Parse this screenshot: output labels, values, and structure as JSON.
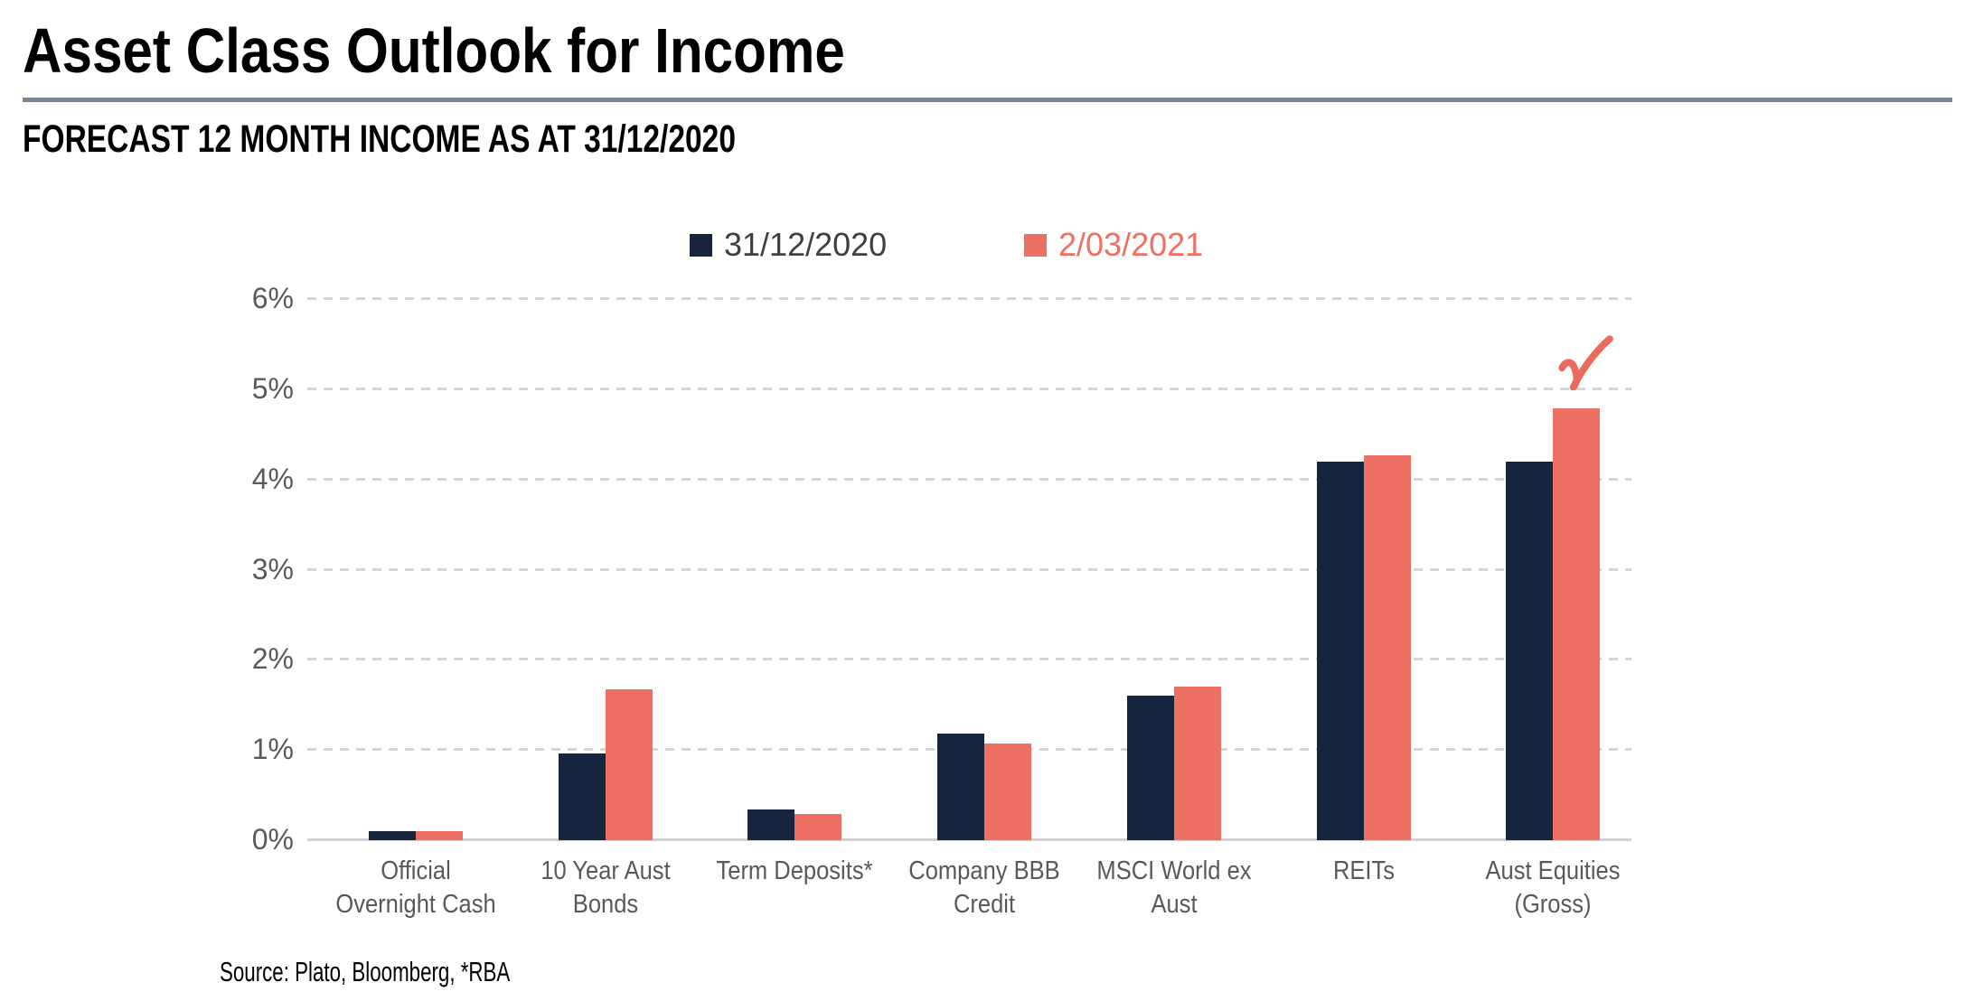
{
  "header": {
    "title": "Asset Class Outlook for Income",
    "subtitle": "FORECAST 12 MONTH INCOME AS AT 31/12/2020"
  },
  "chart_data": {
    "type": "bar",
    "title": "FORECAST 12 MONTH INCOME AS AT 31/12/2020",
    "categories": [
      "Official Overnight Cash",
      "10 Year Aust Bonds",
      "Term Deposits*",
      "Company BBB Credit",
      "MSCI World ex Aust",
      "REITs",
      "Aust Equities (Gross)"
    ],
    "categories_wrapped": [
      [
        "Official",
        "Overnight Cash"
      ],
      [
        "10 Year Aust",
        "Bonds"
      ],
      [
        "Term Deposits*"
      ],
      [
        "Company BBB",
        "Credit"
      ],
      [
        "MSCI World ex",
        "Aust"
      ],
      [
        "REITs"
      ],
      [
        "Aust Equities",
        "(Gross)"
      ]
    ],
    "series": [
      {
        "name": "31/12/2020",
        "color": "#16243D",
        "legend_text_color": "#3F3F3F",
        "values": [
          0.1,
          0.96,
          0.34,
          1.18,
          1.6,
          4.2,
          4.2
        ]
      },
      {
        "name": "2/03/2021",
        "color": "#ED7062",
        "legend_text_color": "#ED7062",
        "values": [
          0.1,
          1.67,
          0.29,
          1.07,
          1.7,
          4.27,
          4.79
        ]
      }
    ],
    "xlabel": "",
    "ylabel": "",
    "ylim": [
      0,
      6
    ],
    "ytick_labels": [
      "0%",
      "1%",
      "2%",
      "3%",
      "4%",
      "5%",
      "6%"
    ],
    "grid": "horizontal-dashed",
    "legend_position": "top-center",
    "annotations": [
      {
        "type": "checkmark",
        "category": "Aust Equities (Gross)",
        "series": "2/03/2021",
        "color": "#EA6A5D"
      }
    ],
    "colors": {
      "axis_line": "#D2D2D2",
      "gridline": "#D6D6D6",
      "tick_label": "#595959",
      "divider_rule": "#7B8495"
    }
  },
  "footer": {
    "source": "Source: Plato, Bloomberg, *RBA"
  }
}
